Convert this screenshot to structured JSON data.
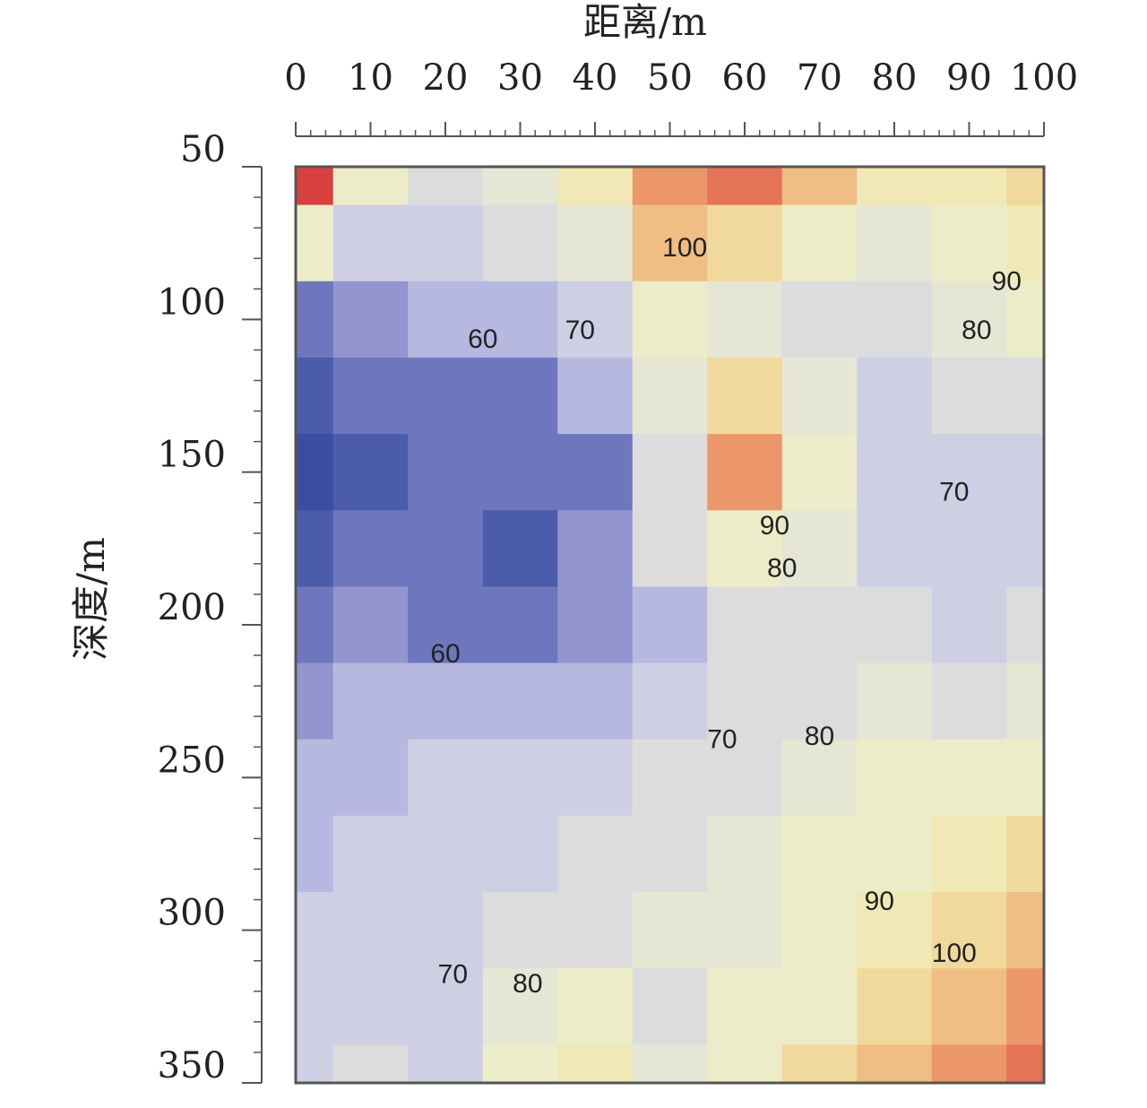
{
  "chart_data": {
    "type": "contour",
    "x_label": "距离/m",
    "y_label": "深度/m",
    "x": [
      0,
      10,
      20,
      30,
      40,
      50,
      60,
      70,
      80,
      90,
      100
    ],
    "y": [
      50,
      75,
      100,
      125,
      150,
      175,
      200,
      225,
      250,
      275,
      300,
      325,
      350
    ],
    "z": [
      [
        120,
        85,
        75,
        80,
        90,
        105,
        110,
        100,
        90,
        90,
        95
      ],
      [
        85,
        72,
        70,
        75,
        82,
        100,
        95,
        85,
        80,
        88,
        92
      ],
      [
        58,
        62,
        65,
        65,
        72,
        85,
        82,
        78,
        75,
        82,
        85
      ],
      [
        50,
        55,
        58,
        58,
        65,
        80,
        95,
        80,
        72,
        75,
        78
      ],
      [
        48,
        52,
        57,
        56,
        58,
        78,
        105,
        85,
        72,
        70,
        72
      ],
      [
        52,
        55,
        55,
        52,
        60,
        75,
        85,
        80,
        72,
        70,
        72
      ],
      [
        58,
        60,
        55,
        55,
        62,
        65,
        75,
        78,
        75,
        72,
        75
      ],
      [
        62,
        65,
        65,
        66,
        68,
        70,
        75,
        78,
        80,
        78,
        80
      ],
      [
        65,
        68,
        70,
        72,
        72,
        75,
        78,
        82,
        85,
        85,
        85
      ],
      [
        68,
        70,
        72,
        72,
        75,
        78,
        80,
        85,
        88,
        90,
        95
      ],
      [
        70,
        72,
        72,
        75,
        78,
        80,
        82,
        85,
        90,
        98,
        102
      ],
      [
        72,
        72,
        70,
        80,
        85,
        78,
        85,
        88,
        95,
        102,
        108
      ],
      [
        72,
        75,
        72,
        85,
        92,
        82,
        88,
        95,
        100,
        105,
        110
      ]
    ],
    "colorscale": [
      [
        50,
        "#3a4ea0"
      ],
      [
        60,
        "#7f84c6"
      ],
      [
        70,
        "#c9c9e7"
      ],
      [
        80,
        "#e2e2da"
      ],
      [
        90,
        "#eff1c2"
      ],
      [
        100,
        "#f1d190"
      ],
      [
        110,
        "#e9845f"
      ],
      [
        120,
        "#d84040"
      ]
    ],
    "contour_labels": [
      {
        "x": 52,
        "y": 77,
        "value": 100
      },
      {
        "x": 95,
        "y": 88,
        "value": 90
      },
      {
        "x": 91,
        "y": 104,
        "value": 80
      },
      {
        "x": 38,
        "y": 104,
        "value": 70
      },
      {
        "x": 25,
        "y": 107,
        "value": 60
      },
      {
        "x": 64,
        "y": 168,
        "value": 90
      },
      {
        "x": 65,
        "y": 182,
        "value": 80
      },
      {
        "x": 88,
        "y": 157,
        "value": 70
      },
      {
        "x": 20,
        "y": 210,
        "value": 60
      },
      {
        "x": 57,
        "y": 238,
        "value": 70
      },
      {
        "x": 70,
        "y": 237,
        "value": 80
      },
      {
        "x": 78,
        "y": 291,
        "value": 90
      },
      {
        "x": 88,
        "y": 308,
        "value": 100
      },
      {
        "x": 21,
        "y": 315,
        "value": 70
      },
      {
        "x": 31,
        "y": 318,
        "value": 80
      }
    ],
    "xlim": [
      0,
      100
    ],
    "xticks": [
      0,
      10,
      20,
      30,
      40,
      50,
      60,
      70,
      80,
      90,
      100
    ],
    "x_minor_step": 2,
    "ylim": [
      50,
      350
    ],
    "yticks": [
      50,
      100,
      150,
      200,
      250,
      300,
      350
    ],
    "y_minor_step": 10,
    "y_inverted": true,
    "x_axis_position": "top"
  }
}
